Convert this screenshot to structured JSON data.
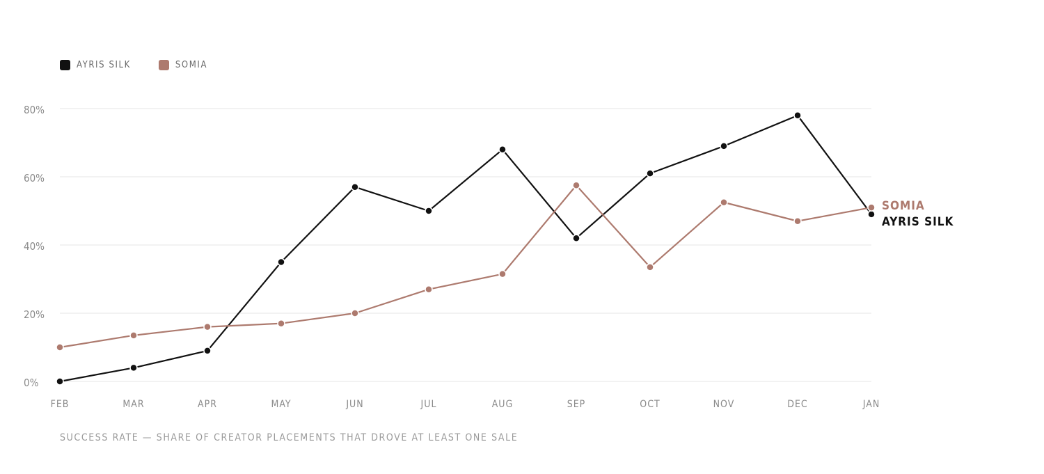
{
  "legend": [
    {
      "name": "AYRIS SILK",
      "color": "#111111"
    },
    {
      "name": "SOMIA",
      "color": "#ad7a6e"
    }
  ],
  "caption": "SUCCESS RATE — SHARE OF CREATOR PLACEMENTS THAT DROVE AT LEAST ONE SALE",
  "chart_data": {
    "type": "line",
    "x": [
      "FEB",
      "MAR",
      "APR",
      "MAY",
      "JUN",
      "JUL",
      "AUG",
      "SEP",
      "OCT",
      "NOV",
      "DEC",
      "JAN"
    ],
    "series": [
      {
        "name": "AYRIS SILK",
        "color": "#111111",
        "values": [
          0,
          4,
          9,
          35,
          57,
          50,
          68,
          42,
          61,
          69,
          78,
          49
        ]
      },
      {
        "name": "SOMIA",
        "color": "#ad7a6e",
        "values": [
          10,
          13.5,
          16,
          17,
          20,
          27,
          31.5,
          57.5,
          33.5,
          52.5,
          47,
          51
        ]
      }
    ],
    "yticks": [
      "0%",
      "20%",
      "40%",
      "60%",
      "80%"
    ],
    "ylim": [
      0,
      80
    ],
    "grid": true,
    "legend_position": "top-left",
    "caption": "SUCCESS RATE — SHARE OF CREATOR PLACEMENTS THAT DROVE AT LEAST ONE SALE"
  }
}
